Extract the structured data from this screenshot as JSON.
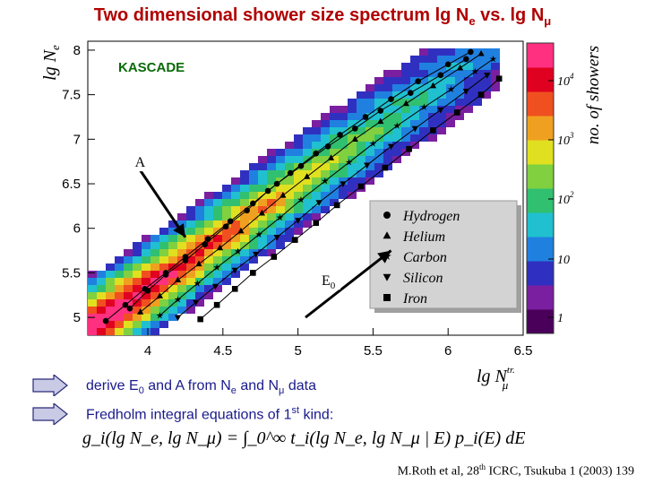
{
  "title": {
    "text": "Two dimensional shower size spectrum lg N",
    "sub1": "e",
    "mid": " vs. lg N",
    "sub2": "μ"
  },
  "chart_data": {
    "type": "heatmap",
    "xaxis": {
      "label": "lg N",
      "label_sub": "μ",
      "label_sup": "tr.",
      "range": [
        3.6,
        6.5
      ],
      "ticks": [
        "4",
        "4.5",
        "5",
        "5.5",
        "6",
        "6.5"
      ]
    },
    "yaxis": {
      "label": "lg N",
      "label_sub": "e",
      "range": [
        4.8,
        8.1
      ],
      "ticks": [
        "5",
        "5.5",
        "6",
        "6.5",
        "7",
        "7.5",
        "8"
      ]
    },
    "colorbar": {
      "label": "no. of showers",
      "scale": "log",
      "ticks": [
        "1",
        "10",
        "10",
        "10",
        "10"
      ],
      "tick_sups": [
        "",
        "",
        "2",
        "3",
        "4"
      ],
      "colors": [
        "#4a005a",
        "#7a1fa0",
        "#3030c0",
        "#2080e0",
        "#20c0d0",
        "#30c070",
        "#80d040",
        "#e0e020",
        "#f0a020",
        "#f05020",
        "#e00020",
        "#ff3080"
      ]
    },
    "experiment_label": "KASCADE",
    "legend": {
      "placement": "right-center",
      "entries": [
        {
          "name": "Hydrogen",
          "marker": "circle"
        },
        {
          "name": "Helium",
          "marker": "triangle-up"
        },
        {
          "name": "Carbon",
          "marker": "star"
        },
        {
          "name": "Silicon",
          "marker": "triangle-down"
        },
        {
          "name": "Iron",
          "marker": "square"
        }
      ]
    },
    "series": [
      {
        "name": "Hydrogen",
        "lines": [
          [
            [
              3.88,
              5.1
            ],
            [
              4.0,
              5.3
            ],
            [
              4.12,
              5.48
            ],
            [
              4.25,
              5.64
            ],
            [
              4.38,
              5.82
            ],
            [
              4.52,
              6.02
            ],
            [
              4.66,
              6.2
            ],
            [
              4.8,
              6.42
            ],
            [
              4.95,
              6.62
            ],
            [
              5.12,
              6.84
            ],
            [
              5.28,
              7.05
            ],
            [
              5.45,
              7.25
            ],
            [
              5.62,
              7.45
            ],
            [
              5.8,
              7.65
            ],
            [
              6.0,
              7.84
            ],
            [
              6.15,
              7.98
            ]
          ],
          [
            [
              3.72,
              4.96
            ],
            [
              3.85,
              5.14
            ],
            [
              3.98,
              5.32
            ],
            [
              4.12,
              5.5
            ],
            [
              4.25,
              5.68
            ],
            [
              4.4,
              5.88
            ],
            [
              4.55,
              6.08
            ],
            [
              4.7,
              6.28
            ],
            [
              4.86,
              6.5
            ],
            [
              5.02,
              6.7
            ],
            [
              5.2,
              6.92
            ],
            [
              5.38,
              7.12
            ],
            [
              5.55,
              7.32
            ],
            [
              5.75,
              7.52
            ],
            [
              5.95,
              7.72
            ],
            [
              6.12,
              7.9
            ]
          ]
        ]
      },
      {
        "name": "Helium",
        "lines": [
          [
            [
              3.95,
              5.06
            ],
            [
              4.08,
              5.24
            ],
            [
              4.2,
              5.42
            ],
            [
              4.34,
              5.6
            ],
            [
              4.48,
              5.78
            ],
            [
              4.62,
              5.97
            ],
            [
              4.76,
              6.17
            ],
            [
              4.9,
              6.37
            ],
            [
              5.06,
              6.58
            ],
            [
              5.22,
              6.79
            ],
            [
              5.38,
              7.0
            ],
            [
              5.55,
              7.2
            ],
            [
              5.72,
              7.4
            ],
            [
              5.9,
              7.6
            ],
            [
              6.08,
              7.8
            ],
            [
              6.22,
              7.96
            ]
          ]
        ]
      },
      {
        "name": "Carbon",
        "lines": [
          [
            [
              4.08,
              5.02
            ],
            [
              4.2,
              5.2
            ],
            [
              4.33,
              5.38
            ],
            [
              4.46,
              5.56
            ],
            [
              4.6,
              5.74
            ],
            [
              4.74,
              5.93
            ],
            [
              4.88,
              6.12
            ],
            [
              5.02,
              6.32
            ],
            [
              5.18,
              6.53
            ],
            [
              5.34,
              6.74
            ],
            [
              5.5,
              6.95
            ],
            [
              5.66,
              7.15
            ],
            [
              5.84,
              7.36
            ],
            [
              6.02,
              7.56
            ],
            [
              6.18,
              7.76
            ],
            [
              6.3,
              7.9
            ]
          ]
        ]
      },
      {
        "name": "Silicon",
        "lines": [
          [
            [
              4.2,
              5.0
            ],
            [
              4.32,
              5.17
            ],
            [
              4.45,
              5.35
            ],
            [
              4.58,
              5.53
            ],
            [
              4.72,
              5.71
            ],
            [
              4.86,
              5.9
            ],
            [
              5.0,
              6.09
            ],
            [
              5.14,
              6.29
            ],
            [
              5.3,
              6.5
            ],
            [
              5.46,
              6.71
            ],
            [
              5.62,
              6.92
            ],
            [
              5.78,
              7.12
            ],
            [
              5.95,
              7.33
            ],
            [
              6.12,
              7.54
            ],
            [
              6.26,
              7.72
            ]
          ]
        ]
      },
      {
        "name": "Iron",
        "lines": [
          [
            [
              4.35,
              4.98
            ],
            [
              4.46,
              5.14
            ],
            [
              4.58,
              5.32
            ],
            [
              4.7,
              5.5
            ],
            [
              4.84,
              5.68
            ],
            [
              4.98,
              5.87
            ],
            [
              5.12,
              6.06
            ],
            [
              5.26,
              6.26
            ],
            [
              5.42,
              6.47
            ],
            [
              5.58,
              6.68
            ],
            [
              5.74,
              6.89
            ],
            [
              5.9,
              7.1
            ],
            [
              6.06,
              7.3
            ],
            [
              6.22,
              7.5
            ],
            [
              6.34,
              7.68
            ]
          ]
        ]
      }
    ],
    "annotations": [
      {
        "text": "A",
        "arrow_from": [
          3.95,
          6.65
        ],
        "arrow_to": [
          4.25,
          5.9
        ]
      },
      {
        "text": "E",
        "text_sub": "0",
        "arrow_from": [
          5.05,
          5.0
        ],
        "arrow_to": [
          5.62,
          5.75
        ]
      }
    ]
  },
  "bullets": [
    {
      "parts": [
        "derive E",
        "0",
        " and A from N",
        "e",
        " and N",
        "μ",
        " data"
      ]
    },
    {
      "parts": [
        "Fredholm integral equations of 1",
        "st",
        " kind:"
      ]
    }
  ],
  "formula": {
    "text": "g_i(lg N_e, lg N_μ) = ∫_0^∞ t_i(lg N_e, lg N_μ | E) p_i(E) dE"
  },
  "citation": {
    "pre": "M.Roth et al, 28",
    "sup": "th",
    "post": " ICRC, Tsukuba 1 (2003) 139"
  }
}
